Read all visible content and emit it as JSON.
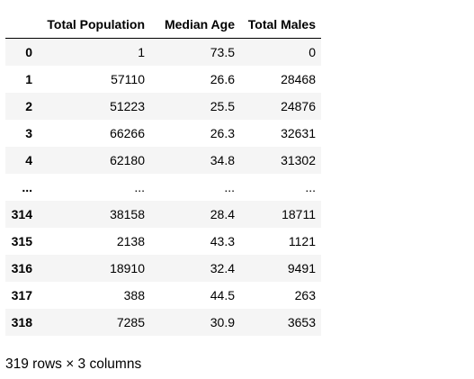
{
  "table": {
    "columns": [
      "",
      "Total Population",
      "Median Age",
      "Total Males"
    ],
    "rows": [
      {
        "index": "0",
        "cells": [
          "1",
          "73.5",
          "0"
        ]
      },
      {
        "index": "1",
        "cells": [
          "57110",
          "26.6",
          "28468"
        ]
      },
      {
        "index": "2",
        "cells": [
          "51223",
          "25.5",
          "24876"
        ]
      },
      {
        "index": "3",
        "cells": [
          "66266",
          "26.3",
          "32631"
        ]
      },
      {
        "index": "4",
        "cells": [
          "62180",
          "34.8",
          "31302"
        ]
      },
      {
        "index": "...",
        "cells": [
          "...",
          "...",
          "..."
        ]
      },
      {
        "index": "314",
        "cells": [
          "38158",
          "28.4",
          "18711"
        ]
      },
      {
        "index": "315",
        "cells": [
          "2138",
          "43.3",
          "1121"
        ]
      },
      {
        "index": "316",
        "cells": [
          "18910",
          "32.4",
          "9491"
        ]
      },
      {
        "index": "317",
        "cells": [
          "388",
          "44.5",
          "263"
        ]
      },
      {
        "index": "318",
        "cells": [
          "7285",
          "30.9",
          "3653"
        ]
      }
    ]
  },
  "caption": "319 rows × 3 columns"
}
